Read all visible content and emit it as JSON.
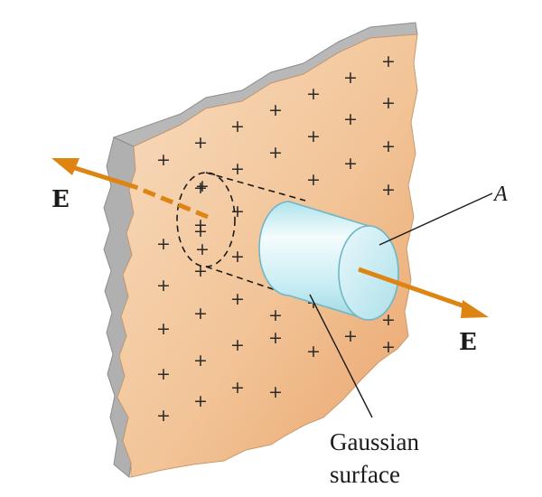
{
  "labels": {
    "field_left": "E",
    "field_right": "E",
    "area": "A",
    "gaussian_line1": "Gaussian",
    "gaussian_line2": "surface"
  },
  "charge_symbol": "+",
  "colors": {
    "sheet_fill": "#f3c69c",
    "sheet_edge": "#a8a8a8",
    "arrow": "#dd8412",
    "cylinder": "#bfeaf1",
    "cylinder_stroke": "#6fb7c6",
    "text": "#1a1a1a"
  }
}
